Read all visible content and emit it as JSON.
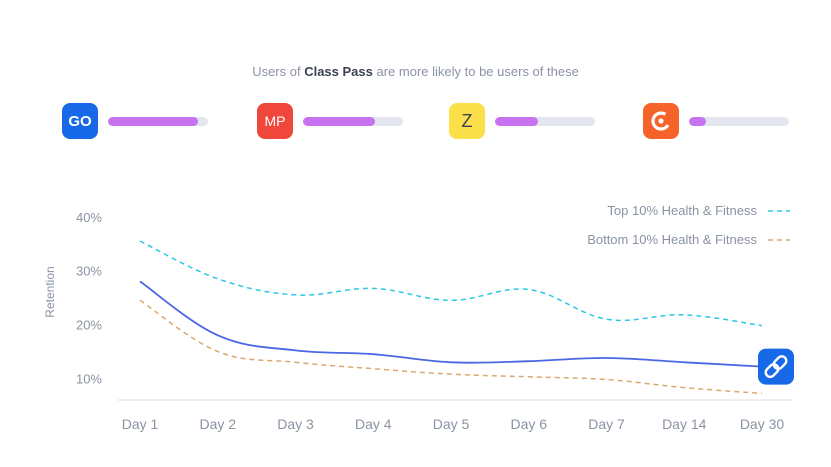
{
  "headline": {
    "prefix": "Users of ",
    "app": "Class Pass",
    "suffix": " are more likely to be users of these"
  },
  "affinity_apps": [
    {
      "icon_text": "GO",
      "icon": "go-app-icon",
      "bg": "#1769e8",
      "fg": "#ffffff",
      "level": 0.9
    },
    {
      "icon_text": "MP",
      "icon": "mp-app-icon",
      "bg": "#f0473c",
      "fg": "#ffffff",
      "level": 0.72
    },
    {
      "icon_text": "Z",
      "icon": "z-app-icon",
      "bg": "#fbe04a",
      "fg": "#3b4250",
      "level": 0.43
    },
    {
      "icon_text": "",
      "icon": "c-app-icon",
      "bg": "#f5622a",
      "fg": "#ffffff",
      "level": 0.17
    }
  ],
  "chart_data": {
    "type": "line",
    "ylabel": "Retention",
    "xlabel": "",
    "categories": [
      "Day 1",
      "Day 2",
      "Day 3",
      "Day 4",
      "Day 5",
      "Day 6",
      "Day 7",
      "Day 14",
      "Day 30"
    ],
    "ylim": [
      6,
      42
    ],
    "yticks": [
      10,
      20,
      30,
      40
    ],
    "ytick_labels": [
      "10%",
      "20%",
      "30%",
      "40%"
    ],
    "grid": false,
    "legend_position": "top-right",
    "series": [
      {
        "name": "Top 10% Health & Fitness",
        "values": [
          35.5,
          28.5,
          25.5,
          26.7,
          24.5,
          26.5,
          21,
          21.8,
          19.8
        ],
        "color": "#2cc7e6",
        "dash": "5,4"
      },
      {
        "name": "",
        "values": [
          28,
          18,
          15.2,
          14.5,
          13,
          13.2,
          13.8,
          13,
          12.2
        ],
        "color": "#4a67e4",
        "dash": ""
      },
      {
        "name": "Bottom 10% Health & Fitness",
        "values": [
          24.5,
          15,
          13,
          11.8,
          10.8,
          10.3,
          9.8,
          8.3,
          7.2
        ],
        "color": "#d9a86e",
        "dash": "5,4"
      }
    ],
    "end_marker_icon": "classpass-link-icon",
    "end_marker_color": "#1769e8"
  }
}
